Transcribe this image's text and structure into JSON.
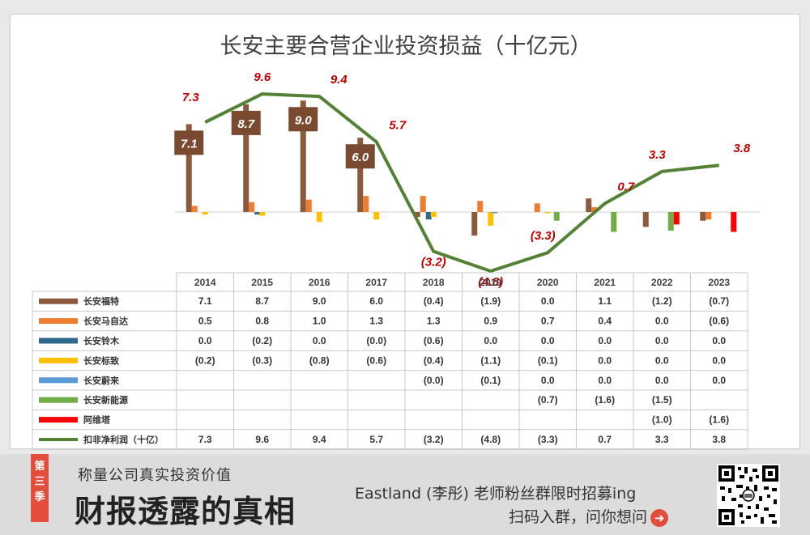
{
  "chart_data": {
    "type": "bar",
    "title": "长安主要合营企业投资损益（十亿元）",
    "categories": [
      "2014",
      "2015",
      "2016",
      "2017",
      "2018",
      "2019",
      "2020",
      "2021",
      "2022",
      "2023"
    ],
    "series": [
      {
        "name": "长安福特",
        "color": "#8b5a3c",
        "values": [
          "7.1",
          "8.7",
          "9.0",
          "6.0",
          "(0.4)",
          "(1.9)",
          "0.0",
          "1.1",
          "(1.2)",
          "(0.7)"
        ]
      },
      {
        "name": "长安马自达",
        "color": "#ed7d31",
        "values": [
          "0.5",
          "0.8",
          "1.0",
          "1.3",
          "1.3",
          "0.9",
          "0.7",
          "0.4",
          "0.0",
          "(0.6)"
        ]
      },
      {
        "name": "长安铃木",
        "color": "#2e6a8e",
        "values": [
          "0.0",
          "(0.2)",
          "0.0",
          "(0.0)",
          "(0.6)",
          "0.0",
          "0.0",
          "0.0",
          "0.0",
          "0.0"
        ]
      },
      {
        "name": "长安标致",
        "color": "#ffc000",
        "values": [
          "(0.2)",
          "(0.3)",
          "(0.8)",
          "(0.6)",
          "(0.4)",
          "(1.1)",
          "(0.1)",
          "0.0",
          "0.0",
          "0.0"
        ]
      },
      {
        "name": "长安蔚来",
        "color": "#5b9bd5",
        "values": [
          "",
          "",
          "",
          "",
          "(0.0)",
          "(0.1)",
          "0.0",
          "0.0",
          "0.0",
          "0.0"
        ]
      },
      {
        "name": "长安新能源",
        "color": "#70ad47",
        "values": [
          "",
          "",
          "",
          "",
          "",
          "",
          "(0.7)",
          "(1.6)",
          "(1.5)",
          ""
        ]
      },
      {
        "name": "阿维塔",
        "color": "#ff0000",
        "values": [
          "",
          "",
          "",
          "",
          "",
          "",
          "",
          "",
          "(1.0)",
          "(1.6)"
        ]
      },
      {
        "name": "扣非净利润（十亿）",
        "color": "#548235",
        "type": "line",
        "values": [
          "7.3",
          "9.6",
          "9.4",
          "5.7",
          "(3.2)",
          "(4.8)",
          "(3.3)",
          "0.7",
          "3.3",
          "3.8"
        ]
      }
    ],
    "line_labels": [
      "7.3",
      "9.6",
      "9.4",
      "5.7",
      "(3.2)",
      "(4.8)",
      "(3.3)",
      "0.7",
      "3.3",
      "3.8"
    ],
    "ford_labels": [
      "7.1",
      "8.7",
      "9.0",
      "6.0"
    ]
  },
  "footer": {
    "badge": [
      "第",
      "三",
      "季"
    ],
    "subtitle": "称量公司真实投资价值",
    "main_title": "财报透露的真相",
    "recruit": "Eastland (李彤) 老师粉丝群限时招募ing",
    "scan": "扫码入群，问你想问",
    "arrow_icon": "arrow-right-circle-icon",
    "qr_icon": "qr-code-icon"
  }
}
